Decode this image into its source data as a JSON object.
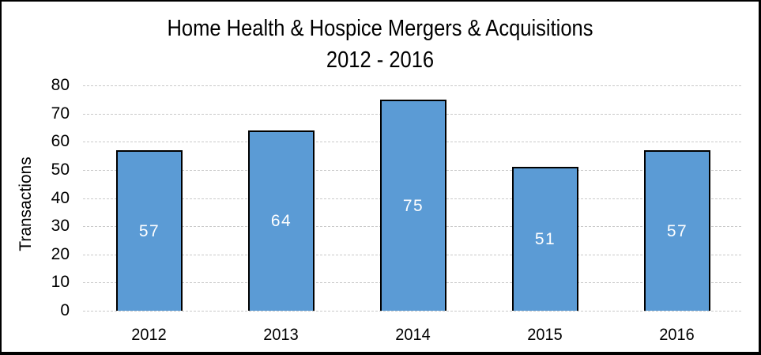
{
  "chart": {
    "title_line1": "Home Health & Hospice Mergers & Acquisitions",
    "title_line2": "2012 - 2016",
    "ylabel": "Transactions"
  },
  "chart_data": {
    "type": "bar",
    "title": "Home Health & Hospice Mergers & Acquisitions",
    "subtitle": "2012 - 2016",
    "categories": [
      "2012",
      "2013",
      "2014",
      "2015",
      "2016"
    ],
    "values": [
      57,
      64,
      75,
      51,
      57
    ],
    "xlabel": "",
    "ylabel": "Transactions",
    "ylim": [
      0,
      80
    ],
    "ytick_step": 10,
    "yticks": [
      0,
      10,
      20,
      30,
      40,
      50,
      60,
      70,
      80
    ],
    "grid": true,
    "legend": false,
    "data_label_position": "center",
    "colors": {
      "bar_fill": "#5b9bd5",
      "bar_border": "#000000",
      "gridline": "#c9c9c9",
      "text": "#000000",
      "data_label_text": "#ffffff",
      "frame_border": "#000000",
      "background": "#ffffff"
    }
  }
}
